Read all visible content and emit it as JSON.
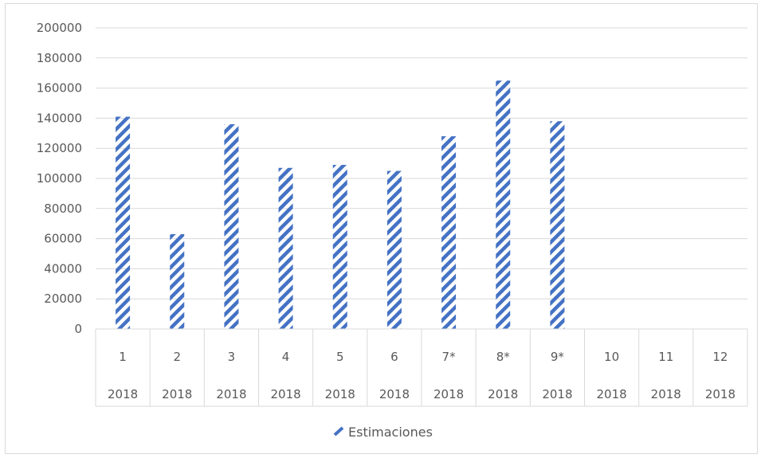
{
  "chart_data": {
    "type": "bar",
    "categories": [
      {
        "level1": "1",
        "level2": "2018"
      },
      {
        "level1": "2",
        "level2": "2018"
      },
      {
        "level1": "3",
        "level2": "2018"
      },
      {
        "level1": "4",
        "level2": "2018"
      },
      {
        "level1": "5",
        "level2": "2018"
      },
      {
        "level1": "6",
        "level2": "2018"
      },
      {
        "level1": "7*",
        "level2": "2018"
      },
      {
        "level1": "8*",
        "level2": "2018"
      },
      {
        "level1": "9*",
        "level2": "2018"
      },
      {
        "level1": "10",
        "level2": "2018"
      },
      {
        "level1": "11",
        "level2": "2018"
      },
      {
        "level1": "12",
        "level2": "2018"
      }
    ],
    "series": [
      {
        "name": "Estimaciones",
        "values": [
          141000,
          63000,
          136000,
          107000,
          109000,
          105000,
          128000,
          165000,
          138000,
          null,
          null,
          null
        ],
        "color": "#4472c4",
        "pattern": "wide-diagonal-stripes"
      }
    ],
    "ylim": [
      0,
      200000
    ],
    "yticks": [
      "0",
      "20000",
      "40000",
      "60000",
      "80000",
      "100000",
      "120000",
      "140000",
      "160000",
      "180000",
      "200000"
    ],
    "grid": true,
    "legend_position": "bottom",
    "legend_label": "Estimaciones"
  }
}
